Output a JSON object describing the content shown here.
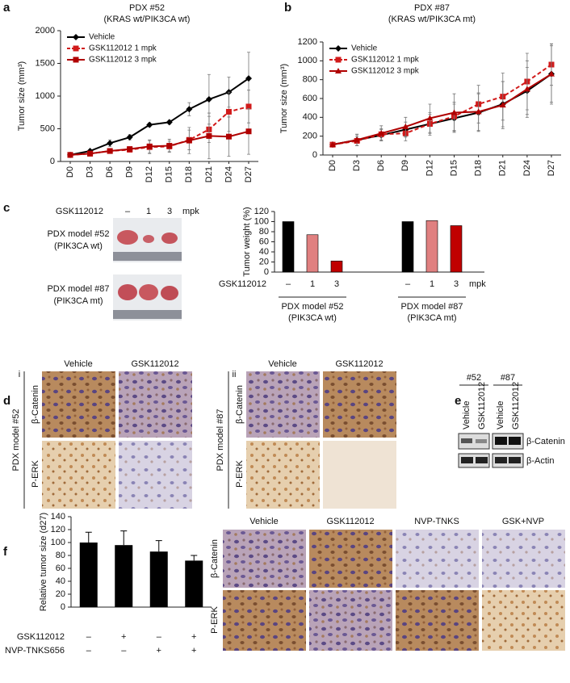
{
  "panel_labels": [
    "a",
    "b",
    "c",
    "d",
    "e",
    "f"
  ],
  "chart_data": [
    {
      "type": "line",
      "title": "PDX #52",
      "subtitle": "(KRAS wt/PIK3CA wt)",
      "y_label": "Tumor size (mm³)",
      "categories": [
        "D0",
        "D3",
        "D6",
        "D9",
        "D12",
        "D15",
        "D18",
        "D21",
        "D24",
        "D27"
      ],
      "ylim": [
        0,
        2000
      ],
      "yticks": [
        0,
        500,
        1000,
        1500,
        2000
      ],
      "legend": "upper left",
      "series": [
        {
          "name": "Vehicle",
          "color": "#000000",
          "marker": "diamond",
          "dashed": false,
          "values": [
            100,
            160,
            280,
            370,
            560,
            600,
            800,
            950,
            1060,
            1270
          ],
          "errors": [
            10,
            20,
            50,
            40,
            30,
            30,
            100,
            380,
            230,
            400
          ]
        },
        {
          "name": "GSK112012 1 mpk",
          "color": "#d11a1a",
          "marker": "square",
          "dashed": true,
          "values": [
            100,
            120,
            160,
            180,
            220,
            230,
            330,
            490,
            760,
            840
          ],
          "errors": [
            10,
            20,
            30,
            30,
            100,
            80,
            150,
            200,
            300,
            250
          ]
        },
        {
          "name": "GSK112012 3 mpk",
          "color": "#b00000",
          "marker": "square",
          "dashed": false,
          "values": [
            100,
            120,
            160,
            190,
            230,
            240,
            320,
            390,
            380,
            460
          ],
          "errors": [
            10,
            20,
            30,
            30,
            100,
            100,
            200,
            350,
            300,
            350
          ]
        }
      ]
    },
    {
      "type": "line",
      "title": "PDX #87",
      "subtitle": "(KRAS wt/PIK3CA mt)",
      "y_label": "Tumor size (mm³)",
      "categories": [
        "D0",
        "D3",
        "D6",
        "D9",
        "D12",
        "D15",
        "D18",
        "D21",
        "D24",
        "D27"
      ],
      "ylim": [
        0,
        1200
      ],
      "yticks": [
        0,
        200,
        400,
        600,
        800,
        1000,
        1200
      ],
      "legend": "upper left",
      "series": [
        {
          "name": "Vehicle",
          "color": "#000000",
          "marker": "diamond",
          "dashed": false,
          "values": [
            110,
            160,
            210,
            270,
            330,
            390,
            450,
            540,
            680,
            860
          ],
          "errors": [
            10,
            60,
            60,
            80,
            100,
            150,
            200,
            240,
            250,
            300
          ]
        },
        {
          "name": "GSK112012 1 mpk",
          "color": "#d11a1a",
          "marker": "square",
          "dashed": true,
          "values": [
            110,
            150,
            220,
            230,
            330,
            410,
            540,
            620,
            780,
            960
          ],
          "errors": [
            10,
            50,
            60,
            80,
            120,
            150,
            200,
            250,
            300,
            220
          ]
        },
        {
          "name": "GSK112012 3 mpk",
          "color": "#b00000",
          "marker": "triangle",
          "dashed": false,
          "values": [
            110,
            160,
            230,
            300,
            390,
            450,
            460,
            530,
            700,
            860
          ],
          "errors": [
            10,
            60,
            80,
            100,
            150,
            200,
            200,
            250,
            300,
            320
          ]
        }
      ]
    },
    {
      "type": "bar",
      "y_label": "Tumor weight (%)",
      "factor_label": "GSK112012",
      "unit_label": "mpk",
      "categories": [
        "–",
        "1",
        "3",
        "–",
        "1",
        "3"
      ],
      "values": [
        100,
        74,
        22,
        100,
        102,
        92
      ],
      "colors": [
        "#000000",
        "#e08080",
        "#c00000",
        "#000000",
        "#e08080",
        "#c00000"
      ],
      "ylim": [
        0,
        120
      ],
      "yticks": [
        0,
        20,
        40,
        60,
        80,
        100,
        120
      ],
      "groups": [
        [
          "PDX model #52",
          "(PIK3CA wt)"
        ],
        [
          "PDX model #87",
          "(PIK3CA mt)"
        ]
      ]
    },
    {
      "type": "bar",
      "y_label": "Relative tumor size (d27)",
      "color": "#000000",
      "values": [
        100,
        96,
        86,
        72
      ],
      "errors": [
        16,
        22,
        17,
        8
      ],
      "ylim": [
        0,
        140
      ],
      "yticks": [
        0,
        20,
        40,
        60,
        80,
        100,
        120,
        140
      ],
      "conditions": [
        {
          "name": "GSK112012",
          "signs": [
            "–",
            "+",
            "–",
            "+"
          ]
        },
        {
          "name": "NVP-TNKS656",
          "signs": [
            "–",
            "–",
            "+",
            "+"
          ]
        }
      ]
    }
  ],
  "photos": {
    "treatment": "GSK112012",
    "doses": [
      "–",
      "1",
      "3"
    ],
    "unit": "mpk",
    "models": [
      [
        "PDX model #52",
        "(PIK3CA wt)"
      ],
      [
        "PDX model #87",
        "(PIK3CA mt)"
      ]
    ]
  },
  "ihc_d": [
    {
      "numeral": "i",
      "model": "PDX model #52",
      "columns": [
        "Vehicle",
        "GSK112012"
      ],
      "rows": [
        "β-Catenin",
        "P-ERK"
      ]
    },
    {
      "numeral": "ii",
      "model": "PDX model #87",
      "columns": [
        "Vehicle",
        "GSK112012"
      ],
      "rows": [
        "β-Catenin",
        "P-ERK"
      ]
    }
  ],
  "blot": {
    "groups": [
      "#52",
      "#87"
    ],
    "lanes": [
      "Vehicle",
      "GSK112012",
      "Vehicle",
      "GSK112012"
    ],
    "bands": [
      "β-Catenin",
      "β-Actin"
    ]
  },
  "ihc_f": {
    "columns": [
      "Vehicle",
      "GSK112012",
      "NVP-TNKS",
      "GSK+NVP"
    ],
    "rows": [
      "β-Catenin",
      "P-ERK"
    ]
  }
}
